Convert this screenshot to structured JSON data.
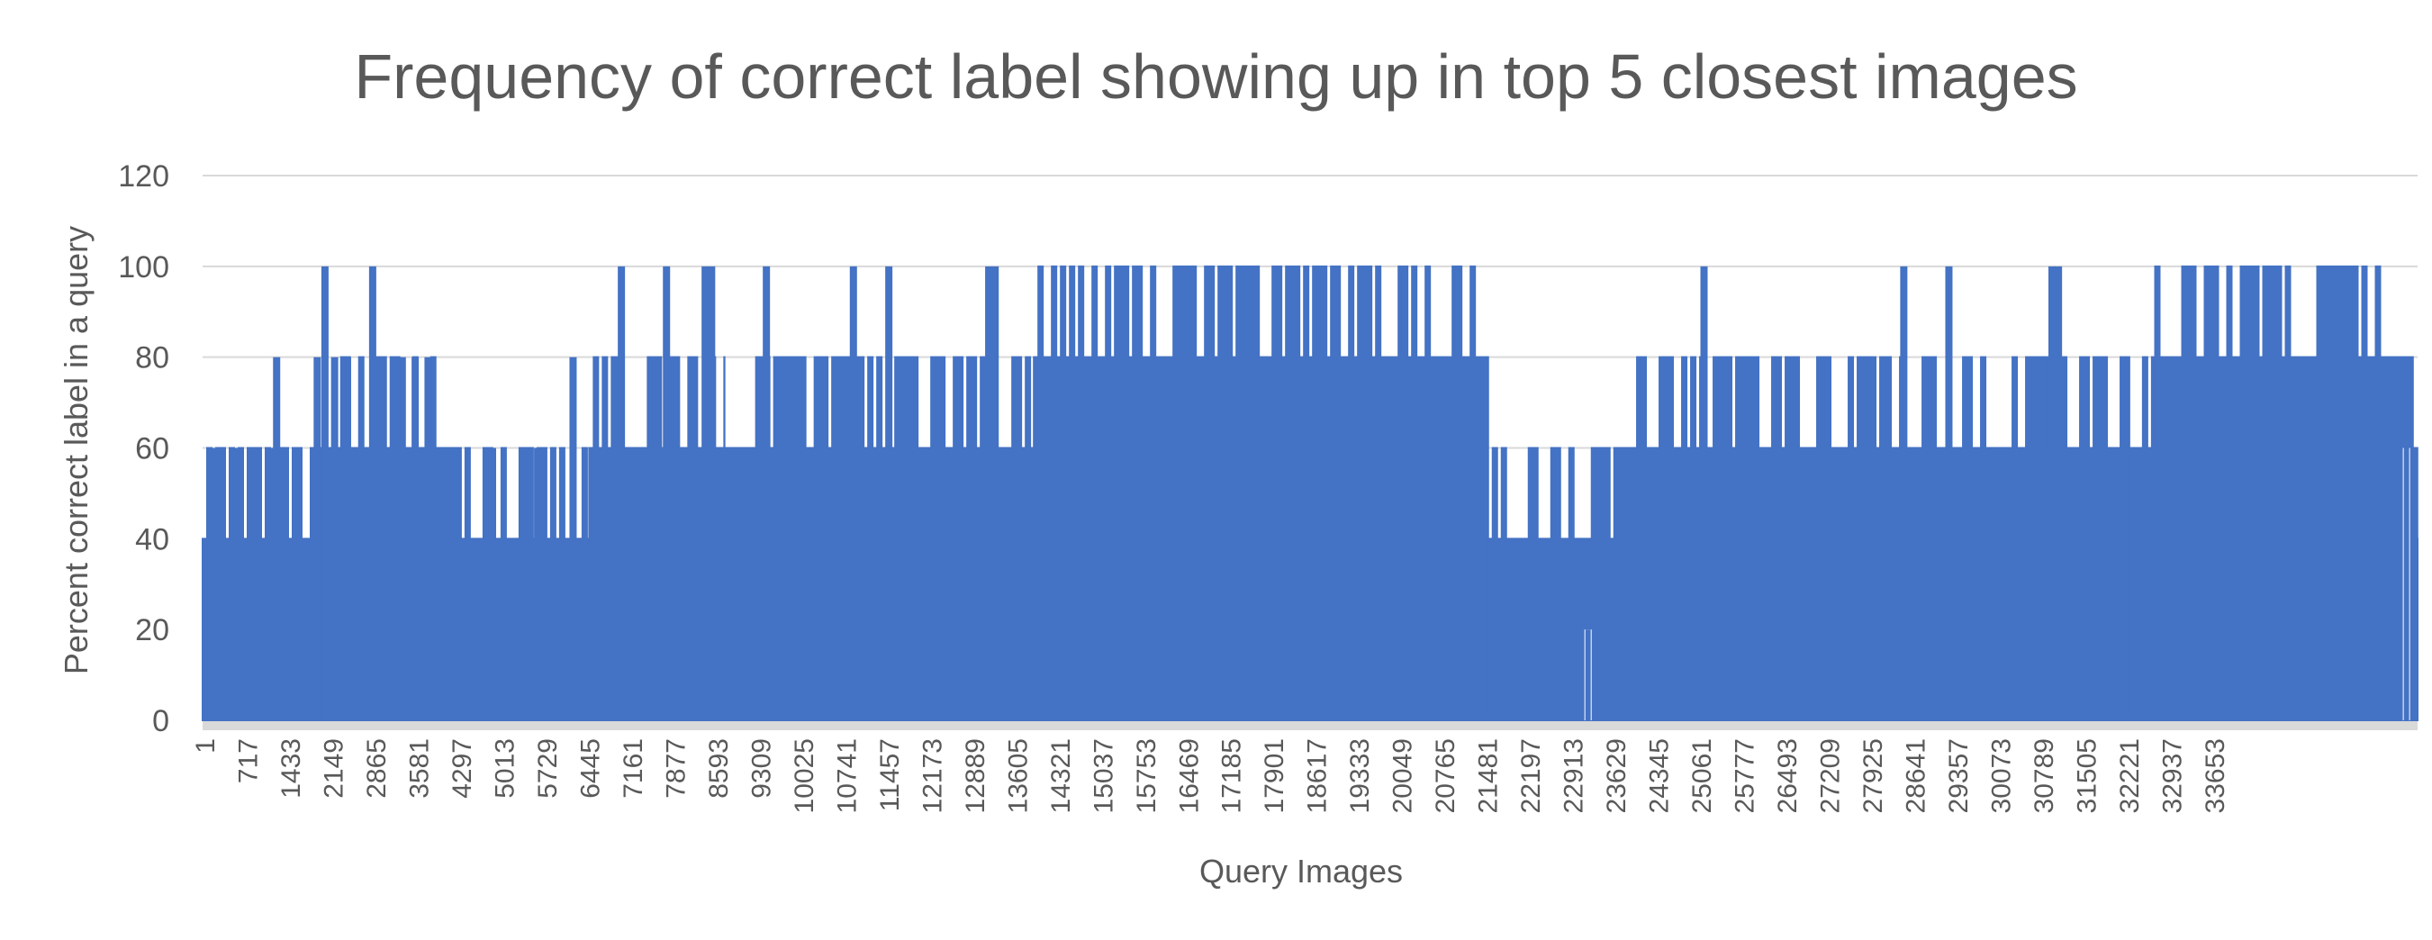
{
  "chart_data": {
    "type": "area",
    "title": "Frequency of correct label showing up in top 5 closest images",
    "xlabel": "Query Images",
    "ylabel": "Percent correct label in a query",
    "ylim": [
      0,
      120
    ],
    "yticks": [
      0,
      20,
      40,
      60,
      80,
      100,
      120
    ],
    "grid": true,
    "legend": "none",
    "x_range": [
      1,
      34373
    ],
    "x_tick_labels": [
      "1",
      "717",
      "1433",
      "2149",
      "2865",
      "3581",
      "4297",
      "5013",
      "5729",
      "6445",
      "7161",
      "7877",
      "8593",
      "9309",
      "10025",
      "10741",
      "11457",
      "12173",
      "12889",
      "13605",
      "14321",
      "15037",
      "15753",
      "16469",
      "17185",
      "17901",
      "18617",
      "19333",
      "20049",
      "20765",
      "21481",
      "22197",
      "22913",
      "23629",
      "24345",
      "25061",
      "25777",
      "26493",
      "27209",
      "27925",
      "28641",
      "29357",
      "30073",
      "30789",
      "31505",
      "32221",
      "32937",
      "33653"
    ],
    "series": [
      {
        "color": "#4472C4",
        "segments": [
          {
            "x_start": 1,
            "x_end": 2149,
            "low": 40,
            "high": 60,
            "spikes": [
              {
                "x": 150,
                "v": 60
              },
              {
                "x": 550,
                "v": 60
              },
              {
                "x": 1050,
                "v": 60
              },
              {
                "x": 1150,
                "v": 80
              },
              {
                "x": 1780,
                "v": 80
              },
              {
                "x": 1900,
                "v": 100
              },
              {
                "x": 2050,
                "v": 80
              }
            ]
          },
          {
            "x_start": 2149,
            "x_end": 3800,
            "low": 60,
            "high": 80,
            "spikes": [
              {
                "x": 2640,
                "v": 100
              },
              {
                "x": 2250,
                "v": 80
              },
              {
                "x": 2750,
                "v": 80
              },
              {
                "x": 3100,
                "v": 80
              },
              {
                "x": 3300,
                "v": 80
              },
              {
                "x": 3500,
                "v": 80
              }
            ]
          },
          {
            "x_start": 3800,
            "x_end": 6000,
            "low": 40,
            "high": 60,
            "spikes": [
              {
                "x": 5750,
                "v": 80
              },
              {
                "x": 4500,
                "v": 60
              },
              {
                "x": 5200,
                "v": 60
              }
            ]
          },
          {
            "x_start": 6000,
            "x_end": 8100,
            "low": 60,
            "high": 80,
            "spikes": [
              {
                "x": 6500,
                "v": 100
              },
              {
                "x": 7200,
                "v": 100
              },
              {
                "x": 7800,
                "v": 100
              },
              {
                "x": 7900,
                "v": 100
              }
            ]
          },
          {
            "x_start": 8100,
            "x_end": 9700,
            "low": 60,
            "high": 80,
            "spikes": [
              {
                "x": 8750,
                "v": 100
              }
            ]
          },
          {
            "x_start": 9700,
            "x_end": 12900,
            "low": 60,
            "high": 80,
            "spikes": [
              {
                "x": 10100,
                "v": 100
              },
              {
                "x": 10650,
                "v": 100
              },
              {
                "x": 12200,
                "v": 100
              },
              {
                "x": 12300,
                "v": 100
              }
            ]
          },
          {
            "x_start": 12900,
            "x_end": 19950,
            "low": 80,
            "high": 100,
            "spikes": []
          },
          {
            "x_start": 19950,
            "x_end": 22050,
            "low": 40,
            "high": 60,
            "spikes": [
              {
                "x": 21500,
                "v": 20
              }
            ]
          },
          {
            "x_start": 22050,
            "x_end": 26200,
            "low": 60,
            "high": 80,
            "spikes": [
              {
                "x": 23300,
                "v": 100
              }
            ]
          },
          {
            "x_start": 26200,
            "x_end": 29900,
            "low": 60,
            "high": 80,
            "spikes": [
              {
                "x": 26400,
                "v": 100
              },
              {
                "x": 27100,
                "v": 100
              },
              {
                "x": 28700,
                "v": 100
              },
              {
                "x": 28800,
                "v": 100
              }
            ]
          },
          {
            "x_start": 29900,
            "x_end": 30300,
            "low": 60,
            "high": 80,
            "spikes": []
          },
          {
            "x_start": 30300,
            "x_end": 34300,
            "low": 80,
            "high": 100,
            "spikes": [
              {
                "x": 34200,
                "v": 60
              }
            ]
          },
          {
            "x_start": 34300,
            "x_end": 34373,
            "low": 40,
            "high": 60,
            "spikes": []
          }
        ]
      }
    ]
  }
}
